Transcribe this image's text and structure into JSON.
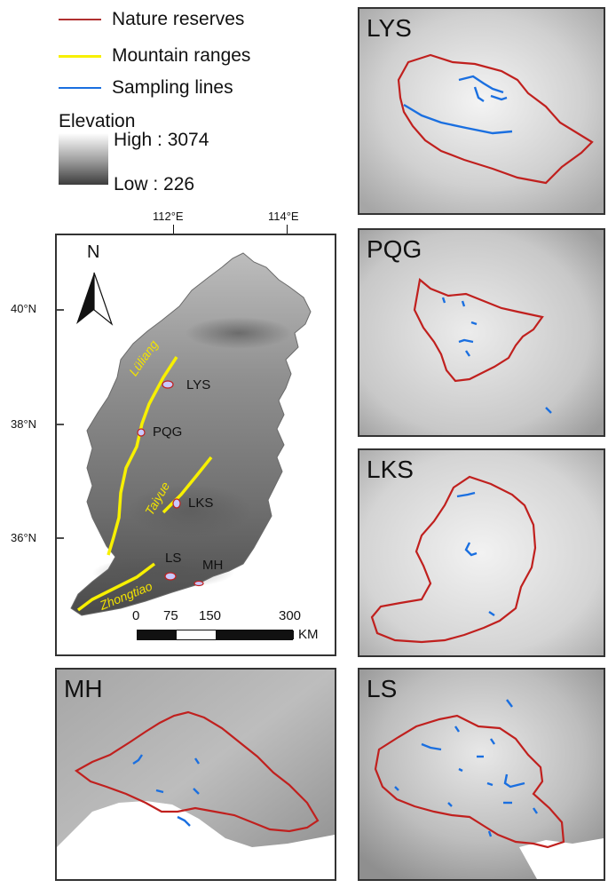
{
  "legend": {
    "items": [
      {
        "label": "Nature reserves",
        "color": "#b03030"
      },
      {
        "label": "Mountain ranges",
        "color": "#f7f000"
      },
      {
        "label": "Sampling lines",
        "color": "#1a6fe0"
      }
    ],
    "elevation_title": "Elevation",
    "high_label": "High : 3074",
    "low_label": "Low : 226"
  },
  "main_map": {
    "lon_ticks": [
      "112°E",
      "114°E"
    ],
    "lat_ticks": [
      "40°N",
      "38°N",
      "36°N"
    ],
    "north_label": "N",
    "reserves": [
      "LYS",
      "PQG",
      "LKS",
      "LS",
      "MH"
    ],
    "ranges": [
      "Lüliang",
      "Taiyue",
      "Zhongtiao"
    ],
    "scale_labels": [
      "0",
      "75",
      "150",
      "300"
    ],
    "scale_unit": "KM"
  },
  "insets": {
    "lys": "LYS",
    "pqg": "PQG",
    "lks": "LKS",
    "mh": "MH",
    "ls": "LS"
  },
  "colors": {
    "boundary": "#c0201e",
    "sampling": "#1a6fe0",
    "mountain": "#f7f000"
  }
}
